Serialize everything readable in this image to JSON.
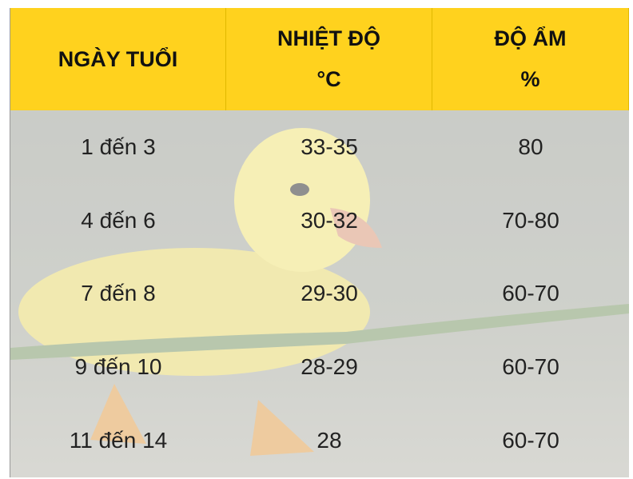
{
  "table": {
    "header": [
      {
        "label": "NGÀY TUỔI"
      },
      {
        "label": "NHIỆT ĐỘ",
        "unit": "°C"
      },
      {
        "label": "ĐỘ ẨM",
        "unit": "%"
      }
    ],
    "rows": [
      [
        "1 đến 3",
        "33-35",
        "80"
      ],
      [
        "4 đến 6",
        "30-32",
        "70-80"
      ],
      [
        "7 đến 8",
        "29-30",
        "60-70"
      ],
      [
        "9 đến 10",
        "28-29",
        "60-70"
      ],
      [
        "11 đến 14",
        "28",
        "60-70"
      ]
    ]
  }
}
